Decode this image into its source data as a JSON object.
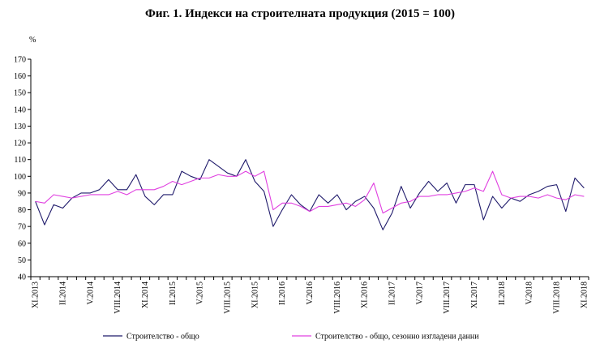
{
  "chart_data": {
    "type": "line",
    "title": "Фиг. 1. Индекси на строителната продукция (2015 = 100)",
    "ylabel": "%",
    "xlabel": "",
    "ylim": [
      40,
      170
    ],
    "yticks": [
      40,
      50,
      60,
      70,
      80,
      90,
      100,
      110,
      120,
      130,
      140,
      150,
      160,
      170
    ],
    "grid": false,
    "legend": "bottom",
    "x": [
      "XI.2013",
      "XII.2013",
      "I.2014",
      "II.2014",
      "III.2014",
      "IV.2014",
      "V.2014",
      "VI.2014",
      "VII.2014",
      "VIII.2014",
      "IX.2014",
      "X.2014",
      "XI.2014",
      "XII.2014",
      "I.2015",
      "II.2015",
      "III.2015",
      "IV.2015",
      "V.2015",
      "VI.2015",
      "VII.2015",
      "VIII.2015",
      "IX.2015",
      "X.2015",
      "XI.2015",
      "XII.2015",
      "I.2016",
      "II.2016",
      "III.2016",
      "IV.2016",
      "V.2016",
      "VI.2016",
      "VII.2016",
      "VIII.2016",
      "IX.2016",
      "X.2016",
      "XI.2016",
      "XII.2016",
      "I.2017",
      "II.2017",
      "III.2017",
      "IV.2017",
      "V.2017",
      "VI.2017",
      "VII.2017",
      "VIII.2017",
      "IX.2017",
      "X.2017",
      "XI.2017",
      "XII.2017",
      "I.2018",
      "II.2018",
      "III.2018",
      "IV.2018",
      "V.2018",
      "VI.2018",
      "VII.2018",
      "VIII.2018",
      "IX.2018",
      "X.2018",
      "XI.2018"
    ],
    "tick_labels": [
      "XI.2013",
      "II.2014",
      "V.2014",
      "VIII.2014",
      "XI.2014",
      "II.2015",
      "V.2015",
      "VIII.2015",
      "XI.2015",
      "II.2016",
      "V.2016",
      "VIII.2016",
      "XI.2016",
      "II.2017",
      "V.2017",
      "VIII.2017",
      "XI.2017",
      "II.2018",
      "V.2018",
      "VIII.2018",
      "XI.2018"
    ],
    "series": [
      {
        "name": "Строителство - общо",
        "color": "#1f1a6b",
        "values": [
          85,
          71,
          83,
          81,
          87,
          90,
          90,
          92,
          98,
          92,
          92,
          101,
          88,
          83,
          89,
          89,
          103,
          100,
          98,
          110,
          106,
          102,
          100,
          110,
          97,
          91,
          70,
          80,
          89,
          83,
          79,
          89,
          84,
          89,
          80,
          85,
          88,
          81,
          68,
          78,
          94,
          81,
          90,
          97,
          91,
          96,
          84,
          95,
          95,
          74,
          88,
          81,
          87,
          85,
          89,
          91,
          94,
          95,
          79,
          99,
          93
        ]
      },
      {
        "name": "Строителство - общо, сезонно изгладени данни",
        "color": "#e040e0",
        "values": [
          85,
          84,
          89,
          88,
          87,
          88,
          89,
          89,
          89,
          91,
          89,
          92,
          92,
          92,
          94,
          97,
          95,
          97,
          99,
          99,
          101,
          100,
          100,
          103,
          100,
          103,
          80,
          84,
          84,
          82,
          79,
          82,
          82,
          83,
          84,
          82,
          86,
          96,
          78,
          81,
          84,
          85,
          88,
          88,
          89,
          89,
          90,
          91,
          93,
          91,
          103,
          89,
          87,
          88,
          88,
          87,
          89,
          87,
          86,
          89,
          88
        ]
      }
    ]
  }
}
